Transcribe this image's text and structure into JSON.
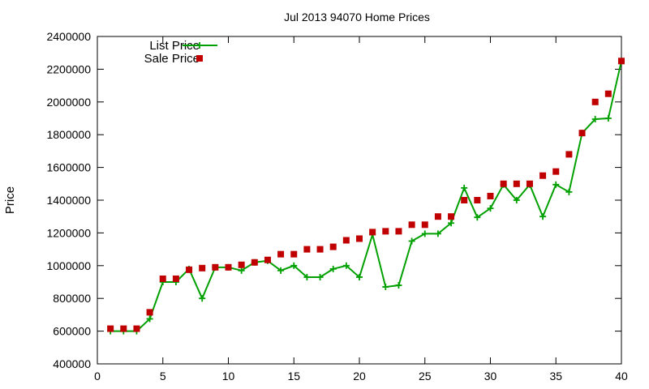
{
  "chart_data": {
    "type": "line",
    "title": "Jul 2013 94070 Home Prices",
    "xlabel": "",
    "ylabel": "Price",
    "xlim": [
      0,
      40
    ],
    "ylim": [
      400000,
      2400000
    ],
    "x_ticks": [
      0,
      5,
      10,
      15,
      20,
      25,
      30,
      35,
      40
    ],
    "y_ticks": [
      400000,
      600000,
      800000,
      1000000,
      1200000,
      1400000,
      1600000,
      1800000,
      2000000,
      2200000,
      2400000
    ],
    "grid": false,
    "legend_position": "top-left",
    "x": [
      1,
      2,
      3,
      4,
      5,
      6,
      7,
      8,
      9,
      10,
      11,
      12,
      13,
      14,
      15,
      16,
      17,
      18,
      19,
      20,
      21,
      22,
      23,
      24,
      25,
      26,
      27,
      28,
      29,
      30,
      31,
      32,
      33,
      34,
      35,
      36,
      37,
      38,
      39,
      40
    ],
    "series": [
      {
        "name": "List Price",
        "style": "linespoints",
        "color": "#00a000",
        "marker": "plus",
        "values": [
          600000,
          600000,
          600000,
          675000,
          900000,
          900000,
          980000,
          800000,
          990000,
          990000,
          970000,
          1020000,
          1030000,
          970000,
          1000000,
          930000,
          930000,
          980000,
          1000000,
          930000,
          1190000,
          870000,
          880000,
          1150000,
          1195000,
          1195000,
          1260000,
          1475000,
          1295000,
          1350000,
          1495000,
          1400000,
          1495000,
          1300000,
          1495000,
          1450000,
          1810000,
          1895000,
          1900000,
          2250000
        ]
      },
      {
        "name": "Sale Price",
        "style": "points",
        "color": "#c00000",
        "marker": "square",
        "values": [
          615000,
          615000,
          615000,
          715000,
          920000,
          920000,
          975000,
          985000,
          990000,
          990000,
          1005000,
          1020000,
          1035000,
          1070000,
          1070000,
          1100000,
          1100000,
          1115000,
          1155000,
          1165000,
          1205000,
          1210000,
          1210000,
          1250000,
          1250000,
          1300000,
          1300000,
          1400000,
          1400000,
          1425000,
          1500000,
          1500000,
          1500000,
          1550000,
          1575000,
          1680000,
          1810000,
          2000000,
          2050000,
          2250000
        ]
      }
    ]
  }
}
